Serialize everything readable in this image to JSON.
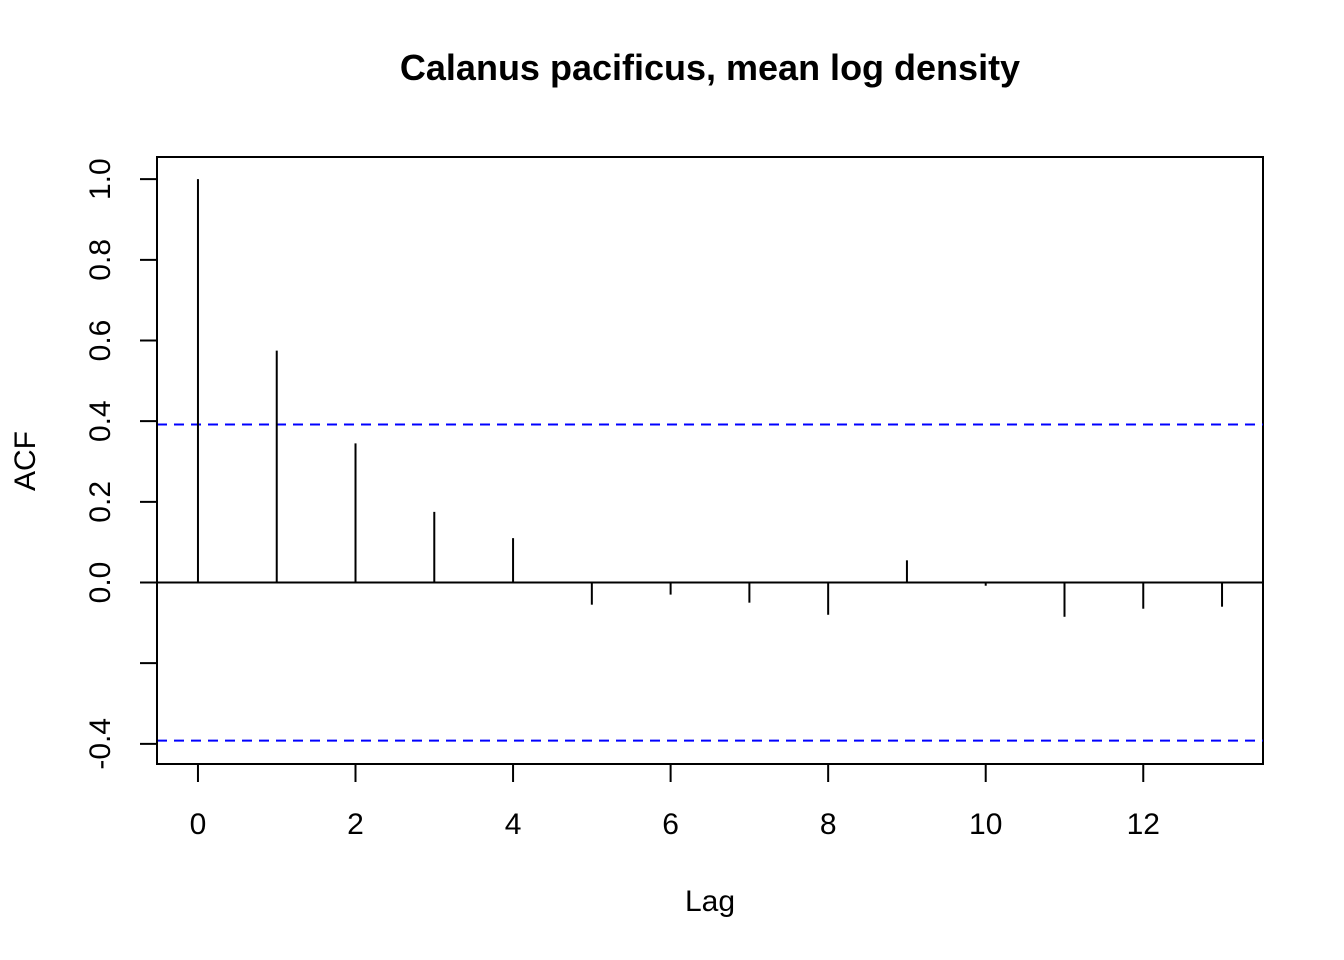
{
  "chart_data": {
    "type": "bar",
    "title": "Calanus pacificus, mean log density",
    "xlabel": "Lag",
    "ylabel": "ACF",
    "x": [
      0,
      1,
      2,
      3,
      4,
      5,
      6,
      7,
      8,
      9,
      10,
      11,
      12,
      13
    ],
    "values": [
      1.0,
      0.575,
      0.345,
      0.175,
      0.11,
      -0.055,
      -0.03,
      -0.05,
      -0.08,
      0.055,
      -0.008,
      -0.085,
      -0.065,
      -0.06
    ],
    "xlim": [
      -0.52,
      13.52
    ],
    "ylim": [
      -0.45,
      1.055
    ],
    "x_ticks": [
      0,
      2,
      4,
      6,
      8,
      10,
      12
    ],
    "x_tick_labels": [
      "0",
      "2",
      "4",
      "6",
      "8",
      "10",
      "12"
    ],
    "y_ticks": [
      -0.4,
      -0.2,
      0.0,
      0.2,
      0.4,
      0.6,
      0.8,
      1.0
    ],
    "y_tick_labels": [
      "-0.4",
      "",
      "0.0",
      "0.2",
      "0.4",
      "0.6",
      "0.8",
      "1.0"
    ],
    "confidence_bound": 0.3919,
    "confidence_line_color": "#0000ff",
    "zero_line": true,
    "grid": false,
    "legend": "none"
  }
}
